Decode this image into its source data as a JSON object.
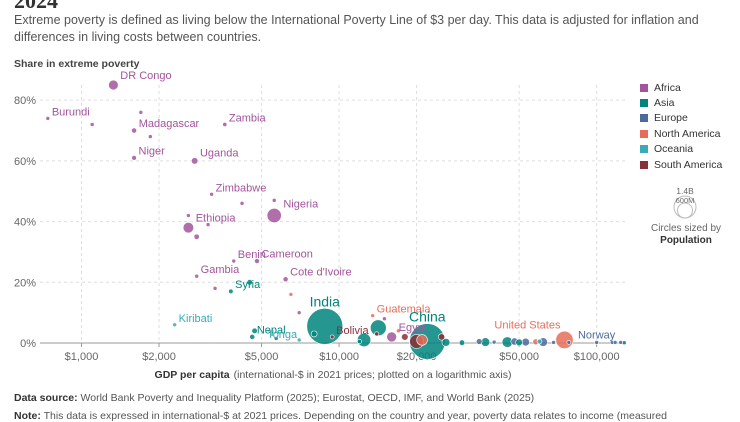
{
  "header": {
    "title_cut": "2024",
    "subtitle": "Extreme poverty is defined as living below the International Poverty Line of $3 per day. This data is adjusted for inflation and differences in living costs between countries."
  },
  "footer": {
    "source_label": "Data source:",
    "source_text": "World Bank Poverty and Inequality Platform (2025); Eurostat, OECD, IMF, and World Bank (2025)",
    "note_label": "Note:",
    "note_text": "This data is expressed in international-$ at 2021 prices. Depending on the country and year, poverty data relates to income (measured"
  },
  "size_key": {
    "max_label": "1.4B",
    "mid_label": "600M",
    "note": "Circles sized by",
    "note_bold": "Population"
  },
  "chart_data": {
    "type": "scatter",
    "title": "Share in extreme poverty",
    "ylabel": "Share in extreme poverty",
    "xlabel_bold": "GDP per capita",
    "xlabel_rest": "(international-$ in 2021 prices; plotted on a logarithmic axis)",
    "xscale": "log",
    "xlim": [
      690,
      130000
    ],
    "ylim": [
      0,
      85
    ],
    "xticks": [
      {
        "v": 1000,
        "label": "$1,000"
      },
      {
        "v": 2000,
        "label": "$2,000"
      },
      {
        "v": 5000,
        "label": "$5,000"
      },
      {
        "v": 10000,
        "label": "$10,000"
      },
      {
        "v": 20000,
        "label": "$20,000"
      },
      {
        "v": 50000,
        "label": "$50,000"
      },
      {
        "v": 100000,
        "label": "$100,000"
      }
    ],
    "yticks": [
      {
        "v": 0,
        "label": "0%"
      },
      {
        "v": 20,
        "label": "20%"
      },
      {
        "v": 40,
        "label": "40%"
      },
      {
        "v": 60,
        "label": "60%"
      },
      {
        "v": 80,
        "label": "80%"
      }
    ],
    "legend": [
      {
        "key": "africa",
        "name": "Africa",
        "color": "#a2559c"
      },
      {
        "key": "asia",
        "name": "Asia",
        "color": "#00847e"
      },
      {
        "key": "europe",
        "name": "Europe",
        "color": "#4c6a9c"
      },
      {
        "key": "namerica",
        "name": "North America",
        "color": "#e56e5a"
      },
      {
        "key": "oceania",
        "name": "Oceania",
        "color": "#38aaba"
      },
      {
        "key": "samerica",
        "name": "South America",
        "color": "#883039"
      }
    ],
    "points": [
      {
        "label": "DR Congo",
        "region": "africa",
        "gdp": 1330,
        "pov": 85,
        "pop": 105
      },
      {
        "label": "Burundi",
        "region": "africa",
        "gdp": 740,
        "pov": 74,
        "pop": 13
      },
      {
        "label": "Madagascar",
        "region": "africa",
        "gdp": 1600,
        "pov": 70,
        "pop": 30
      },
      {
        "label": "Zambia",
        "region": "africa",
        "gdp": 3600,
        "pov": 72,
        "pop": 20
      },
      {
        "label": "Niger",
        "region": "africa",
        "gdp": 1600,
        "pov": 61,
        "pop": 26
      },
      {
        "label": "Uganda",
        "region": "africa",
        "gdp": 2750,
        "pov": 60,
        "pop": 48
      },
      {
        "label": "Zimbabwe",
        "region": "africa",
        "gdp": 3200,
        "pov": 49,
        "pop": 16
      },
      {
        "label": "Nigeria",
        "region": "africa",
        "gdp": 5600,
        "pov": 42,
        "pop": 225
      },
      {
        "label": "Ethiopia",
        "region": "africa",
        "gdp": 2600,
        "pov": 38,
        "pop": 125
      },
      {
        "label": "Benin",
        "region": "africa",
        "gdp": 3900,
        "pov": 27,
        "pop": 13
      },
      {
        "label": "Cameroon",
        "region": "africa",
        "gdp": 4800,
        "pov": 27,
        "pop": 28
      },
      {
        "label": "Gambia",
        "region": "africa",
        "gdp": 2800,
        "pov": 22,
        "pop": 3
      },
      {
        "label": "Cote d'Ivoire",
        "region": "africa",
        "gdp": 6200,
        "pov": 21,
        "pop": 29
      },
      {
        "label": "Syria",
        "region": "asia",
        "gdp": 3800,
        "pov": 17,
        "pop": 23
      },
      {
        "label": "Kiribati",
        "region": "oceania",
        "gdp": 2300,
        "pov": 6,
        "pop": 1
      },
      {
        "label": "India",
        "region": "asia",
        "gdp": 8800,
        "pov": 5.5,
        "pop": 1430
      },
      {
        "label": "Nepal",
        "region": "asia",
        "gdp": 4600,
        "pov": 2,
        "pop": 30
      },
      {
        "label": "Tonga",
        "region": "oceania",
        "gdp": 7000,
        "pov": 1,
        "pop": 1
      },
      {
        "label": "Bolivia",
        "region": "samerica",
        "gdp": 9400,
        "pov": 2,
        "pop": 12
      },
      {
        "label": "Guatemala",
        "region": "namerica",
        "gdp": 13500,
        "pov": 9,
        "pop": 18
      },
      {
        "label": "Egypt",
        "region": "africa",
        "gdp": 16000,
        "pov": 2,
        "pop": 110
      },
      {
        "label": "China",
        "region": "asia",
        "gdp": 22000,
        "pov": 0.5,
        "pop": 1410
      },
      {
        "label": "United States",
        "region": "namerica",
        "gdp": 75000,
        "pov": 1,
        "pop": 335
      },
      {
        "label": "Norway",
        "region": "europe",
        "gdp": 115000,
        "pov": 0.2,
        "pop": 5
      },
      {
        "label": "",
        "region": "africa",
        "gdp": 1100,
        "pov": 72,
        "pop": 10
      },
      {
        "label": "",
        "region": "africa",
        "gdp": 1700,
        "pov": 76,
        "pop": 6
      },
      {
        "label": "",
        "region": "africa",
        "gdp": 1850,
        "pov": 68,
        "pop": 5
      },
      {
        "label": "",
        "region": "africa",
        "gdp": 2600,
        "pov": 42,
        "pop": 13
      },
      {
        "label": "",
        "region": "africa",
        "gdp": 2800,
        "pov": 35,
        "pop": 33
      },
      {
        "label": "",
        "region": "africa",
        "gdp": 3100,
        "pov": 39,
        "pop": 8
      },
      {
        "label": "",
        "region": "africa",
        "gdp": 4200,
        "pov": 46,
        "pop": 12
      },
      {
        "label": "",
        "region": "africa",
        "gdp": 5600,
        "pov": 47,
        "pop": 13
      },
      {
        "label": "",
        "region": "africa",
        "gdp": 3300,
        "pov": 18,
        "pop": 8
      },
      {
        "label": "",
        "region": "asia",
        "gdp": 4500,
        "pov": 20,
        "pop": 35
      },
      {
        "label": "",
        "region": "namerica",
        "gdp": 6500,
        "pov": 16,
        "pop": 11
      },
      {
        "label": "",
        "region": "asia",
        "gdp": 4700,
        "pov": 4,
        "pop": 35
      },
      {
        "label": "",
        "region": "asia",
        "gdp": 5700,
        "pov": 1.5,
        "pop": 18
      },
      {
        "label": "",
        "region": "africa",
        "gdp": 7000,
        "pov": 10,
        "pop": 7
      },
      {
        "label": "",
        "region": "asia",
        "gdp": 8000,
        "pov": 3,
        "pop": 40
      },
      {
        "label": "",
        "region": "asia",
        "gdp": 12500,
        "pov": 1,
        "pop": 200
      },
      {
        "label": "",
        "region": "asia",
        "gdp": 14200,
        "pov": 5,
        "pop": 280
      },
      {
        "label": "",
        "region": "asia",
        "gdp": 12000,
        "pov": 0.5,
        "pop": 20
      },
      {
        "label": "",
        "region": "samerica",
        "gdp": 14000,
        "pov": 3,
        "pop": 20
      },
      {
        "label": "",
        "region": "samerica",
        "gdp": 18000,
        "pov": 2,
        "pop": 50
      },
      {
        "label": "",
        "region": "samerica",
        "gdp": 20000,
        "pov": 0.5,
        "pop": 216
      },
      {
        "label": "",
        "region": "namerica",
        "gdp": 21000,
        "pov": 1,
        "pop": 128
      },
      {
        "label": "",
        "region": "asia",
        "gdp": 26000,
        "pov": 0.2,
        "pop": 70
      },
      {
        "label": "",
        "region": "samerica",
        "gdp": 25000,
        "pov": 2,
        "pop": 46
      },
      {
        "label": "",
        "region": "namerica",
        "gdp": 17000,
        "pov": 4,
        "pop": 6
      },
      {
        "label": "",
        "region": "africa",
        "gdp": 15000,
        "pov": 8,
        "pop": 4
      },
      {
        "label": "",
        "region": "asia",
        "gdp": 30000,
        "pov": 0.1,
        "pop": 35
      },
      {
        "label": "",
        "region": "europe",
        "gdp": 35000,
        "pov": 0.5,
        "pop": 38
      },
      {
        "label": "",
        "region": "asia",
        "gdp": 37000,
        "pov": 0.3,
        "pop": 85
      },
      {
        "label": "",
        "region": "europe",
        "gdp": 40000,
        "pov": 0.3,
        "pop": 10
      },
      {
        "label": "",
        "region": "asia",
        "gdp": 45000,
        "pov": 0.3,
        "pop": 125
      },
      {
        "label": "",
        "region": "europe",
        "gdp": 48000,
        "pov": 0.5,
        "pop": 59
      },
      {
        "label": "",
        "region": "asia",
        "gdp": 50000,
        "pov": 0.2,
        "pop": 52
      },
      {
        "label": "",
        "region": "europe",
        "gdp": 53000,
        "pov": 0.3,
        "pop": 68
      },
      {
        "label": "",
        "region": "oceania",
        "gdp": 60000,
        "pov": 0.5,
        "pop": 26
      },
      {
        "label": "",
        "region": "europe",
        "gdp": 62000,
        "pov": 0.3,
        "pop": 84
      },
      {
        "label": "",
        "region": "namerica",
        "gdp": 58000,
        "pov": 0.4,
        "pop": 40
      },
      {
        "label": "",
        "region": "europe",
        "gdp": 68000,
        "pov": 0.2,
        "pop": 17
      },
      {
        "label": "",
        "region": "europe",
        "gdp": 78000,
        "pov": 0.2,
        "pop": 9
      },
      {
        "label": "",
        "region": "europe",
        "gdp": 100000,
        "pov": 0.2,
        "pop": 9
      },
      {
        "label": "",
        "region": "europe",
        "gdp": 118000,
        "pov": 0.2,
        "pop": 5
      },
      {
        "label": "",
        "region": "europe",
        "gdp": 124000,
        "pov": 0.2,
        "pop": 1
      },
      {
        "label": "",
        "region": "asia",
        "gdp": 128000,
        "pov": 0.1,
        "pop": 6
      }
    ]
  }
}
